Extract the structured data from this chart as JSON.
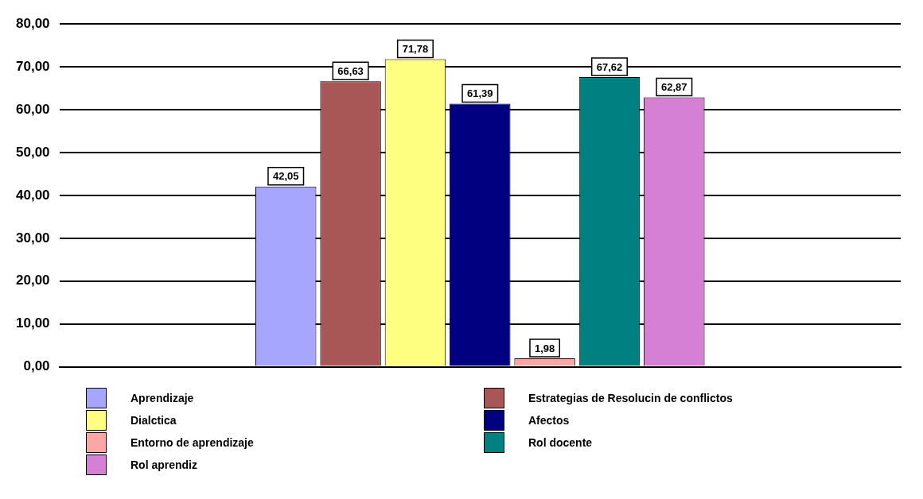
{
  "chart_data": {
    "type": "bar",
    "categories": [
      null,
      null,
      null,
      null,
      null,
      null,
      null,
      null,
      null,
      null,
      null,
      null,
      null
    ],
    "series": [
      {
        "name": "Aprendizaje",
        "color": "#a6a6fe",
        "values": [
          null,
          null,
          null,
          42.05,
          null,
          null,
          null,
          null,
          null,
          null,
          null,
          null,
          null
        ],
        "value_labels": [
          null,
          null,
          null,
          "42,05",
          null,
          null,
          null,
          null,
          null,
          null,
          null,
          null,
          null
        ]
      },
      {
        "name": "Estrategias de Resolucin de conflictos",
        "color": "#a85656",
        "values": [
          null,
          null,
          null,
          null,
          66.63,
          null,
          null,
          null,
          null,
          null,
          null,
          null,
          null
        ],
        "value_labels": [
          null,
          null,
          null,
          null,
          "66,63",
          null,
          null,
          null,
          null,
          null,
          null,
          null,
          null
        ]
      },
      {
        "name": "Dialctica",
        "color": "#fefe80",
        "values": [
          null,
          null,
          null,
          null,
          null,
          71.78,
          null,
          null,
          null,
          null,
          null,
          null,
          null
        ],
        "value_labels": [
          null,
          null,
          null,
          null,
          null,
          "71,78",
          null,
          null,
          null,
          null,
          null,
          null,
          null
        ]
      },
      {
        "name": "Afectos",
        "color": "#000080",
        "values": [
          null,
          null,
          null,
          null,
          null,
          null,
          61.39,
          null,
          null,
          null,
          null,
          null,
          null
        ],
        "value_labels": [
          null,
          null,
          null,
          null,
          null,
          null,
          "61,39",
          null,
          null,
          null,
          null,
          null,
          null
        ]
      },
      {
        "name": "Entorno de aprendizaje",
        "color": "#fea6a6",
        "values": [
          null,
          null,
          null,
          null,
          null,
          null,
          null,
          1.98,
          null,
          null,
          null,
          null,
          null
        ],
        "value_labels": [
          null,
          null,
          null,
          null,
          null,
          null,
          null,
          "1,98",
          null,
          null,
          null,
          null,
          null
        ]
      },
      {
        "name": "Rol docente",
        "color": "#008080",
        "values": [
          null,
          null,
          null,
          null,
          null,
          null,
          null,
          null,
          67.62,
          null,
          null,
          null,
          null
        ],
        "value_labels": [
          null,
          null,
          null,
          null,
          null,
          null,
          null,
          null,
          "67,62",
          null,
          null,
          null,
          null
        ]
      },
      {
        "name": "Rol aprendiz",
        "color": "#d580d5",
        "values": [
          null,
          null,
          null,
          null,
          null,
          null,
          null,
          null,
          null,
          62.87,
          null,
          null,
          null
        ],
        "value_labels": [
          null,
          null,
          null,
          null,
          null,
          null,
          null,
          null,
          null,
          "62,87",
          null,
          null,
          null
        ]
      }
    ],
    "ylim": [
      0,
      80
    ],
    "yticks": [
      {
        "value": 0,
        "label": "0,00"
      },
      {
        "value": 10,
        "label": "10,00"
      },
      {
        "value": 20,
        "label": "20,00"
      },
      {
        "value": 30,
        "label": "30,00"
      },
      {
        "value": 40,
        "label": "40,00"
      },
      {
        "value": 50,
        "label": "50,00"
      },
      {
        "value": 60,
        "label": "60,00"
      },
      {
        "value": 70,
        "label": "70,00"
      },
      {
        "value": 80,
        "label": "80,00"
      }
    ],
    "grid": "y",
    "legend": "bottom"
  }
}
